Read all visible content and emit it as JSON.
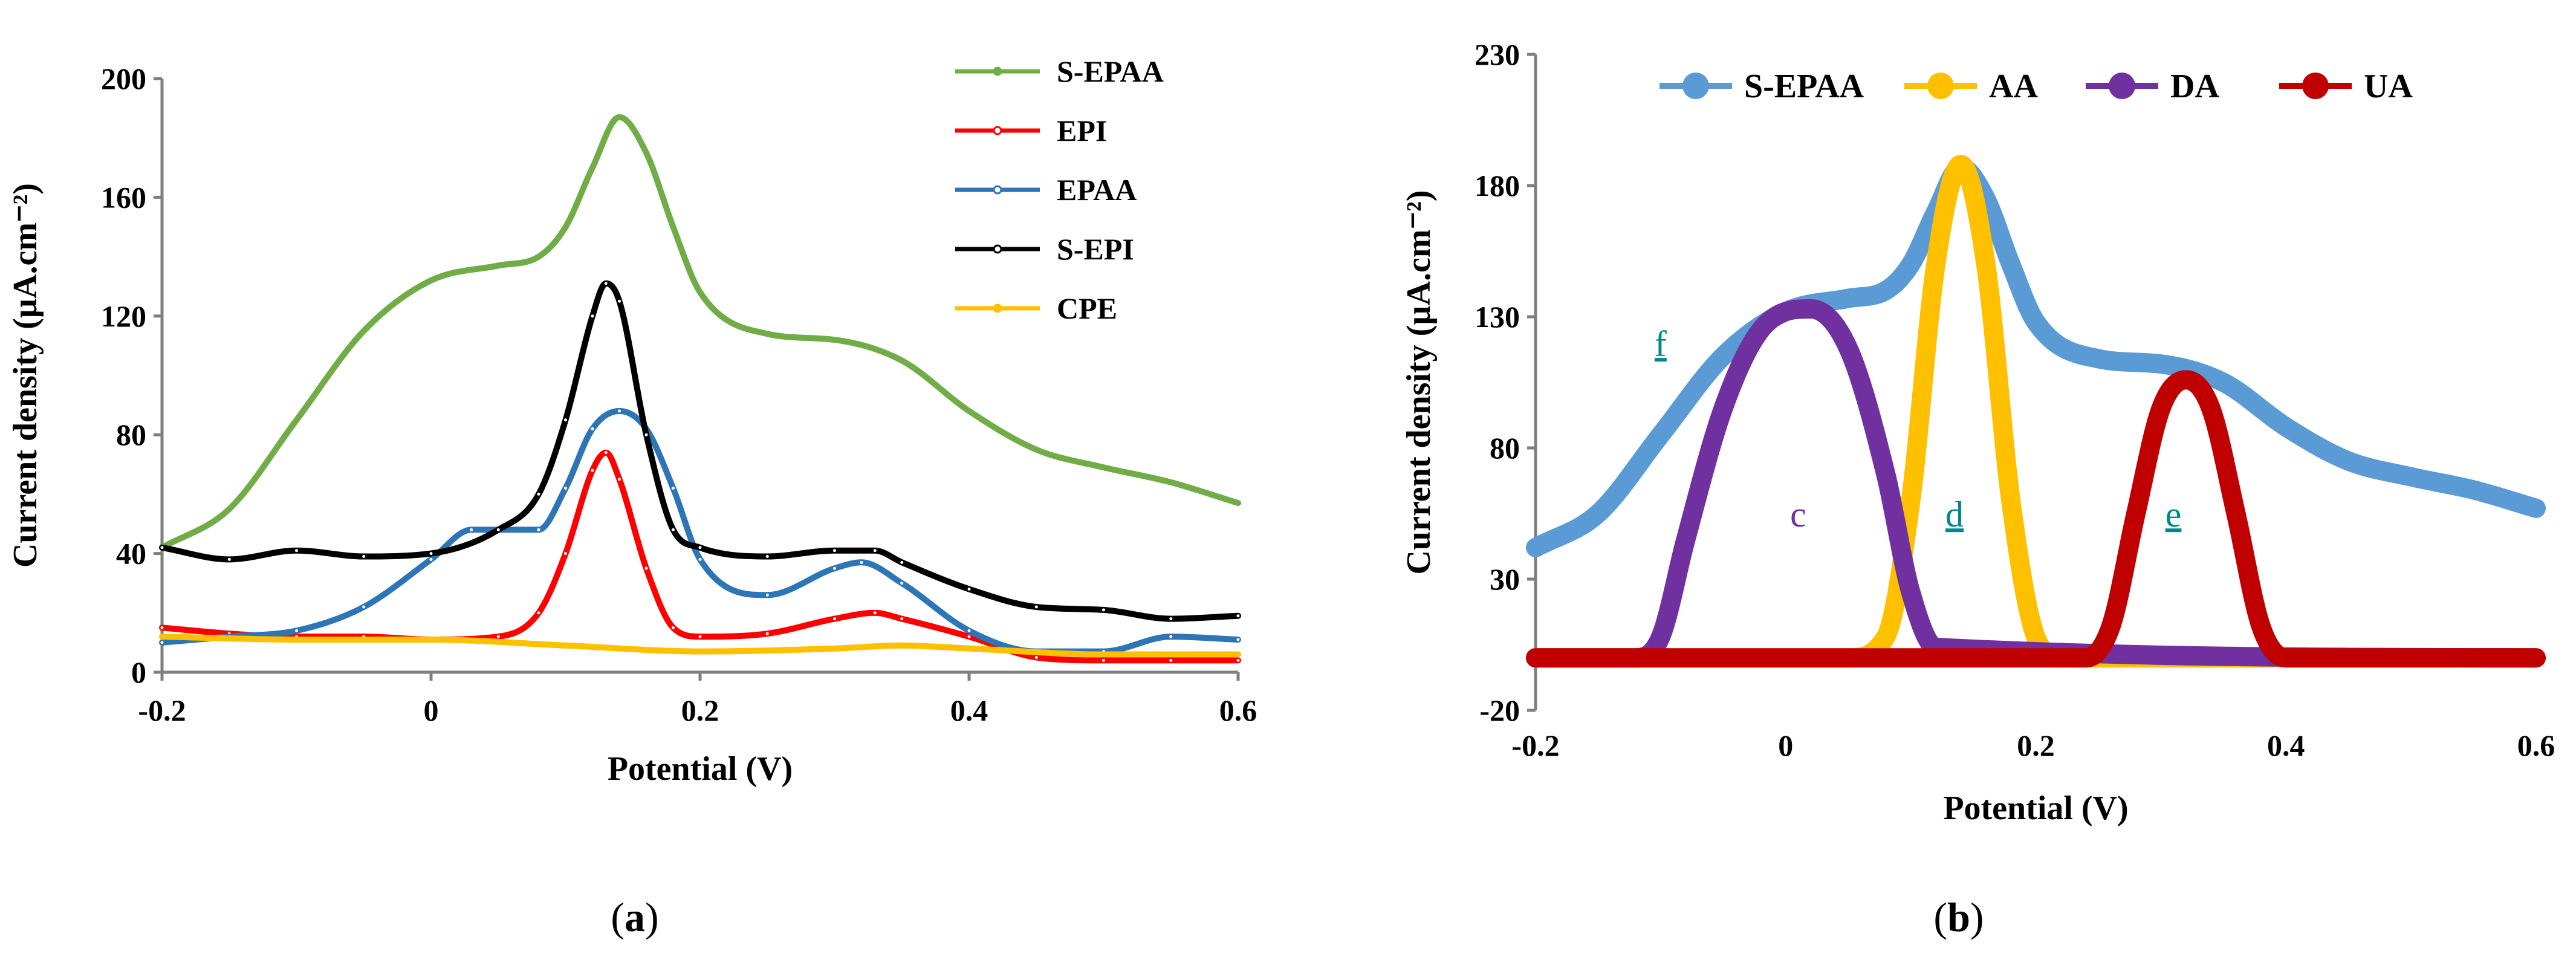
{
  "chart_data": [
    {
      "id": "a",
      "type": "line",
      "caption": {
        "open": "(",
        "letter": "a",
        "close": ")"
      },
      "xlabel": "Potential (V)",
      "ylabel": "Current density (µA.cm⁻²)",
      "xlim": [
        -0.2,
        0.6
      ],
      "ylim": [
        0,
        200
      ],
      "xticks": [
        -0.2,
        0,
        0.2,
        0.4,
        0.6
      ],
      "xtick_labels": [
        "-0.2",
        "0",
        "0.2",
        "0.4",
        "0.6"
      ],
      "yticks": [
        0,
        40,
        80,
        120,
        160,
        200
      ],
      "ytick_labels": [
        "0",
        "40",
        "80",
        "120",
        "160",
        "200"
      ],
      "legend_position": "top-right",
      "series": [
        {
          "name": "S-EPAA",
          "color": "#70ad47",
          "marker": "dot",
          "x": [
            -0.2,
            -0.15,
            -0.1,
            -0.05,
            0,
            0.05,
            0.08,
            0.1,
            0.12,
            0.14,
            0.16,
            0.18,
            0.2,
            0.25,
            0.3,
            0.35,
            0.4,
            0.45,
            0.5,
            0.55,
            0.6
          ],
          "y": [
            42,
            55,
            85,
            115,
            132,
            137,
            140,
            150,
            170,
            187,
            175,
            150,
            128,
            114,
            112,
            105,
            88,
            75,
            69,
            64,
            57
          ]
        },
        {
          "name": "EPI",
          "color": "#ff0000",
          "marker": "circle",
          "x": [
            -0.2,
            -0.15,
            -0.1,
            -0.05,
            0,
            0.05,
            0.08,
            0.1,
            0.12,
            0.13,
            0.14,
            0.16,
            0.18,
            0.2,
            0.25,
            0.3,
            0.33,
            0.35,
            0.4,
            0.45,
            0.5,
            0.55,
            0.6
          ],
          "y": [
            15,
            13,
            12,
            12,
            11,
            12,
            20,
            40,
            68,
            74,
            65,
            35,
            15,
            12,
            13,
            18,
            20,
            18,
            12,
            5,
            4,
            4,
            4
          ]
        },
        {
          "name": "EPAA",
          "color": "#2e75b6",
          "marker": "circle",
          "x": [
            -0.2,
            -0.15,
            -0.1,
            -0.05,
            0,
            0.03,
            0.05,
            0.08,
            0.1,
            0.12,
            0.14,
            0.16,
            0.18,
            0.2,
            0.25,
            0.3,
            0.32,
            0.35,
            0.4,
            0.45,
            0.5,
            0.55,
            0.6
          ],
          "y": [
            10,
            12,
            14,
            22,
            38,
            48,
            48,
            48,
            62,
            82,
            88,
            82,
            62,
            38,
            26,
            35,
            37,
            30,
            14,
            7,
            7,
            12,
            11
          ]
        },
        {
          "name": "S-EPI",
          "color": "#000000",
          "marker": "circle",
          "x": [
            -0.2,
            -0.15,
            -0.1,
            -0.05,
            0,
            0.05,
            0.08,
            0.1,
            0.12,
            0.13,
            0.14,
            0.16,
            0.18,
            0.2,
            0.25,
            0.3,
            0.33,
            0.35,
            0.4,
            0.45,
            0.5,
            0.55,
            0.6
          ],
          "y": [
            42,
            38,
            41,
            39,
            40,
            48,
            60,
            85,
            120,
            131,
            125,
            80,
            48,
            42,
            39,
            41,
            41,
            37,
            28,
            22,
            21,
            18,
            19
          ]
        },
        {
          "name": "CPE",
          "color": "#ffc000",
          "marker": "dot",
          "x": [
            -0.2,
            -0.1,
            0,
            0.1,
            0.2,
            0.3,
            0.35,
            0.4,
            0.5,
            0.6
          ],
          "y": [
            12,
            11,
            11,
            9,
            7,
            8,
            9,
            8,
            6,
            6
          ]
        }
      ],
      "annotations": []
    },
    {
      "id": "b",
      "type": "line",
      "caption": {
        "open": "(",
        "letter": "b",
        "close": ")"
      },
      "xlabel": "Potential (V)",
      "ylabel": "Current density (µA.cm⁻²)",
      "xlim": [
        -0.2,
        0.6
      ],
      "ylim": [
        -20,
        230
      ],
      "xticks": [
        -0.2,
        0,
        0.2,
        0.4,
        0.6
      ],
      "xtick_labels": [
        "-0.2",
        "0",
        "0.2",
        "0.4",
        "0.6"
      ],
      "yticks": [
        -20,
        30,
        80,
        130,
        180,
        230
      ],
      "ytick_labels": [
        "-20",
        "30",
        "80",
        "130",
        "180",
        "230"
      ],
      "legend_position": "top",
      "series": [
        {
          "name": "S-EPAA",
          "color": "#5b9bd5",
          "x": [
            -0.2,
            -0.15,
            -0.1,
            -0.05,
            0,
            0.05,
            0.08,
            0.1,
            0.12,
            0.14,
            0.16,
            0.18,
            0.2,
            0.25,
            0.3,
            0.35,
            0.4,
            0.45,
            0.5,
            0.55,
            0.6
          ],
          "y": [
            42,
            55,
            85,
            115,
            132,
            137,
            140,
            150,
            170,
            187,
            175,
            150,
            128,
            114,
            112,
            105,
            88,
            75,
            69,
            64,
            57
          ]
        },
        {
          "name": "AA",
          "color": "#ffc000",
          "x": [
            -0.2,
            0.05,
            0.08,
            0.1,
            0.12,
            0.14,
            0.16,
            0.18,
            0.2,
            0.22,
            0.6
          ],
          "y": [
            0,
            0,
            8,
            60,
            150,
            188,
            150,
            60,
            8,
            0,
            0
          ]
        },
        {
          "name": "DA",
          "color": "#7030a0",
          "x": [
            -0.2,
            -0.12,
            -0.1,
            -0.08,
            -0.05,
            -0.02,
            0.02,
            0.05,
            0.08,
            0.1,
            0.12,
            0.6
          ],
          "y": [
            0,
            0,
            8,
            45,
            95,
            125,
            133,
            118,
            70,
            25,
            4,
            0
          ]
        },
        {
          "name": "UA",
          "color": "#c00000",
          "x": [
            -0.2,
            0.24,
            0.26,
            0.28,
            0.3,
            0.32,
            0.34,
            0.36,
            0.38,
            0.4,
            0.6
          ],
          "y": [
            0,
            0,
            12,
            55,
            95,
            106,
            95,
            55,
            12,
            0,
            0
          ]
        }
      ],
      "annotations": [
        {
          "text": "f",
          "x": -0.1,
          "y": 115,
          "color": "#00868b",
          "underline": true
        },
        {
          "text": "c",
          "x": 0.01,
          "y": 50,
          "color": "#7030a0",
          "underline": false
        },
        {
          "text": "d",
          "x": 0.135,
          "y": 50,
          "color": "#00868b",
          "underline": true
        },
        {
          "text": "e",
          "x": 0.31,
          "y": 50,
          "color": "#00868b",
          "underline": true
        }
      ]
    }
  ]
}
